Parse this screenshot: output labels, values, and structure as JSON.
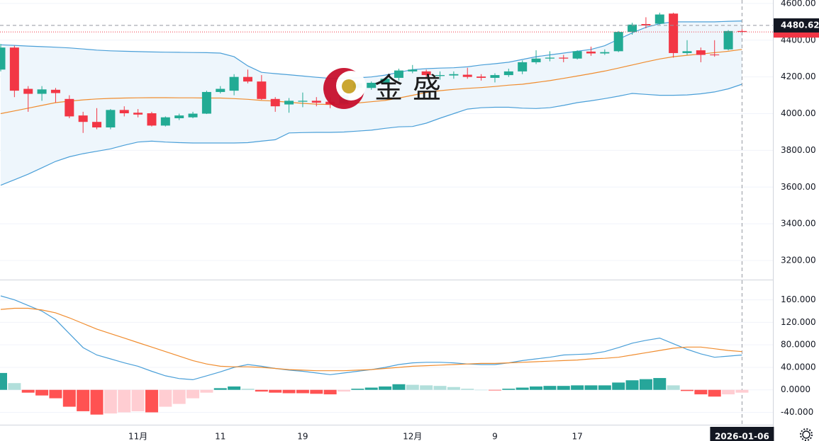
{
  "watermark": "金盛",
  "chart_data": [
    {
      "type": "candlestick",
      "categories": [
        null,
        null,
        null,
        null,
        null,
        null,
        null,
        null,
        null,
        null,
        "11月",
        null,
        null,
        null,
        null,
        null,
        "11",
        null,
        null,
        null,
        null,
        null,
        "19",
        null,
        null,
        null,
        null,
        null,
        null,
        null,
        "12月",
        null,
        null,
        null,
        null,
        null,
        "9",
        null,
        null,
        null,
        null,
        null,
        "17",
        null,
        null,
        null,
        null,
        null,
        null,
        null,
        null,
        null,
        null,
        null,
        "2026-01-06"
      ],
      "open": [
        4240,
        4360,
        4135,
        4108,
        4130,
        4080,
        3990,
        3955,
        3925,
        4020,
        4005,
        4002,
        3935,
        3975,
        3980,
        4000,
        4118,
        4125,
        4200,
        4175,
        4080,
        4050,
        4065,
        4070,
        4065,
        4055,
        4140,
        4140,
        4165,
        4195,
        4230,
        4230,
        4205,
        4208,
        4212,
        4202,
        4195,
        4210,
        4230,
        4280,
        4300,
        4305,
        4300,
        4338,
        4328,
        4340,
        4445,
        4488,
        4490,
        4545,
        4330,
        4345,
        4322,
        4350,
        4450
      ],
      "high": [
        4380,
        4370,
        4150,
        4150,
        4140,
        4100,
        4010,
        4030,
        4025,
        4040,
        4025,
        4010,
        3985,
        4000,
        4010,
        4125,
        4150,
        4215,
        4240,
        4210,
        4090,
        4085,
        4115,
        4090,
        4090,
        4120,
        4175,
        4175,
        4195,
        4245,
        4265,
        4240,
        4230,
        4230,
        4250,
        4215,
        4220,
        4245,
        4290,
        4345,
        4340,
        4320,
        4345,
        4365,
        4350,
        4450,
        4495,
        4525,
        4550,
        4550,
        4400,
        4360,
        4400,
        4455,
        4460
      ],
      "low": [
        4230,
        4090,
        4010,
        4070,
        4060,
        3975,
        3895,
        3915,
        3915,
        3985,
        3980,
        3930,
        3930,
        3965,
        3975,
        3998,
        4110,
        4100,
        4165,
        4075,
        4010,
        4005,
        4035,
        4040,
        4030,
        4050,
        4130,
        4130,
        4160,
        4180,
        4220,
        4190,
        4185,
        4190,
        4190,
        4180,
        4170,
        4200,
        4215,
        4270,
        4285,
        4280,
        4295,
        4315,
        4320,
        4335,
        4430,
        4465,
        4485,
        4305,
        4320,
        4280,
        4310,
        4345,
        4440
      ],
      "close": [
        4360,
        4125,
        4108,
        4132,
        4112,
        3985,
        3955,
        3925,
        4020,
        4002,
        3995,
        3935,
        3980,
        3990,
        4000,
        4118,
        4135,
        4200,
        4175,
        4080,
        4040,
        4070,
        4070,
        4060,
        4050,
        4100,
        4165,
        4168,
        4190,
        4235,
        4240,
        4210,
        4210,
        4215,
        4200,
        4195,
        4210,
        4230,
        4280,
        4300,
        4305,
        4300,
        4340,
        4328,
        4335,
        4445,
        4485,
        4480,
        4540,
        4330,
        4340,
        4320,
        4318,
        4450,
        4445
      ],
      "up_color": "#22ab94",
      "down_color": "#f23645",
      "series": [
        {
          "color": "#4a9fd8",
          "values": [
            4375,
            4372,
            4368,
            4365,
            4362,
            4358,
            4352,
            4346,
            4342,
            4340,
            4338,
            4336,
            4335,
            4334,
            4333,
            4332,
            4330,
            4310,
            4260,
            4225,
            4218,
            4212,
            4205,
            4198,
            4192,
            4192,
            4195,
            4200,
            4210,
            4225,
            4240,
            4245,
            4248,
            4250,
            4255,
            4265,
            4272,
            4280,
            4295,
            4310,
            4320,
            4330,
            4340,
            4350,
            4370,
            4405,
            4440,
            4470,
            4490,
            4500,
            4500,
            4500,
            4500,
            4503,
            4505
          ]
        },
        {
          "color": "#f08c2e",
          "values": [
            4000,
            4015,
            4030,
            4045,
            4060,
            4068,
            4075,
            4080,
            4083,
            4085,
            4086,
            4087,
            4087,
            4086,
            4086,
            4085,
            4085,
            4082,
            4078,
            4072,
            4068,
            4062,
            4056,
            4052,
            4050,
            4052,
            4058,
            4065,
            4072,
            4085,
            4100,
            4115,
            4125,
            4132,
            4138,
            4142,
            4148,
            4155,
            4160,
            4170,
            4180,
            4192,
            4205,
            4218,
            4232,
            4248,
            4265,
            4282,
            4298,
            4310,
            4318,
            4325,
            4332,
            4340,
            4350
          ]
        },
        {
          "color": "#4a9fd8",
          "values": [
            3610,
            3640,
            3670,
            3705,
            3740,
            3765,
            3782,
            3795,
            3808,
            3828,
            3845,
            3850,
            3845,
            3842,
            3840,
            3840,
            3840,
            3840,
            3842,
            3850,
            3858,
            3895,
            3897,
            3898,
            3898,
            3900,
            3905,
            3910,
            3920,
            3928,
            3930,
            3948,
            3975,
            4000,
            4025,
            4032,
            4035,
            4035,
            4030,
            4028,
            4032,
            4045,
            4060,
            4070,
            4082,
            4095,
            4110,
            4105,
            4100,
            4100,
            4102,
            4108,
            4118,
            4135,
            4160
          ]
        }
      ],
      "band_fill": "#eef6fc",
      "crosshair_price": 4480.62,
      "ylim": [
        3096,
        4619
      ],
      "yticks": [
        {
          "value": 3200,
          "label": "3200.00"
        },
        {
          "value": 3400,
          "label": "3400.00"
        },
        {
          "value": 3600,
          "label": "3600.00"
        },
        {
          "value": 3800,
          "label": "3800.00"
        },
        {
          "value": 4000,
          "label": "4000.00"
        },
        {
          "value": 4200,
          "label": "4200.00"
        },
        {
          "value": 4400,
          "label": "4400.00"
        },
        {
          "value": 4600,
          "label": "4600.00"
        }
      ],
      "grid": true
    },
    {
      "type": "macd",
      "series": [
        {
          "color": "#4a9fd8",
          "values": [
            167,
            160,
            150,
            140,
            125,
            100,
            75,
            62,
            55,
            48,
            42,
            33,
            25,
            20,
            18,
            25,
            32,
            40,
            45,
            42,
            38,
            35,
            33,
            30,
            27,
            30,
            33,
            36,
            40,
            45,
            48,
            49,
            49,
            48,
            46,
            45,
            45,
            48,
            52,
            55,
            58,
            62,
            63,
            64,
            68,
            75,
            83,
            88,
            92,
            82,
            72,
            64,
            58,
            60,
            62
          ]
        },
        {
          "color": "#f08c2e",
          "values": [
            143,
            145,
            145,
            142,
            137,
            128,
            118,
            108,
            100,
            92,
            84,
            76,
            68,
            60,
            52,
            46,
            42,
            41,
            41,
            40,
            38,
            36,
            35,
            34,
            34,
            34,
            35,
            36,
            38,
            40,
            42,
            43,
            44,
            45,
            46,
            47,
            47,
            48,
            49,
            50,
            51,
            52,
            53,
            55,
            56,
            58,
            62,
            66,
            70,
            74,
            76,
            76,
            73,
            70,
            68
          ]
        }
      ],
      "histogram": [
        30,
        12,
        -5,
        -10,
        -15,
        -30,
        -38,
        -44,
        -42,
        -40,
        -38,
        -40,
        -30,
        -25,
        -15,
        -5,
        3,
        6,
        2,
        -3,
        -5,
        -6,
        -6,
        -7,
        -8,
        -3,
        2,
        4,
        6,
        10,
        9,
        8,
        7,
        5,
        2,
        0,
        -1,
        2,
        4,
        6,
        7,
        7,
        8,
        8,
        8,
        13,
        17,
        19,
        21,
        8,
        -2,
        -8,
        -12,
        -8,
        -5
      ],
      "histogram_colors": {
        "up_grow": "#26a69a",
        "up_fall": "#b2dfdb",
        "down_grow": "#ff5252",
        "down_fall": "#ffcdd2"
      },
      "ylim": [
        -62,
        196
      ],
      "yticks": [
        {
          "value": -40,
          "label": "-40.000"
        },
        {
          "value": 0,
          "label": "0.0000"
        },
        {
          "value": 40,
          "label": "40.0000"
        },
        {
          "value": 80,
          "label": "80.0000"
        },
        {
          "value": 120,
          "label": "120.000"
        },
        {
          "value": 160,
          "label": "160.000"
        }
      ],
      "grid": true
    }
  ]
}
